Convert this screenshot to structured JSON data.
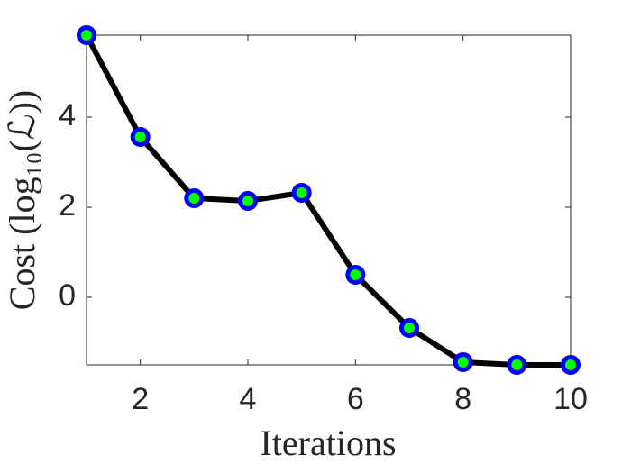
{
  "chart_data": {
    "type": "line",
    "xlabel": "Iterations",
    "ylabel": "Cost (log₁₀(ℒ))",
    "x": [
      1,
      2,
      3,
      4,
      5,
      6,
      7,
      8,
      9,
      10
    ],
    "series": [
      {
        "color": "#000000",
        "marker_edge": "#0000ff",
        "marker_face": "#00ff00",
        "values": [
          5.82,
          3.56,
          2.2,
          2.14,
          2.32,
          0.5,
          -0.68,
          -1.44,
          -1.5,
          -1.5
        ]
      }
    ],
    "xlim": [
      1,
      10
    ],
    "xticks": [
      2,
      4,
      6,
      8,
      10
    ],
    "ylim": [
      -1.5,
      5.82
    ],
    "yticks": [
      0,
      2,
      4
    ],
    "grid": false
  }
}
